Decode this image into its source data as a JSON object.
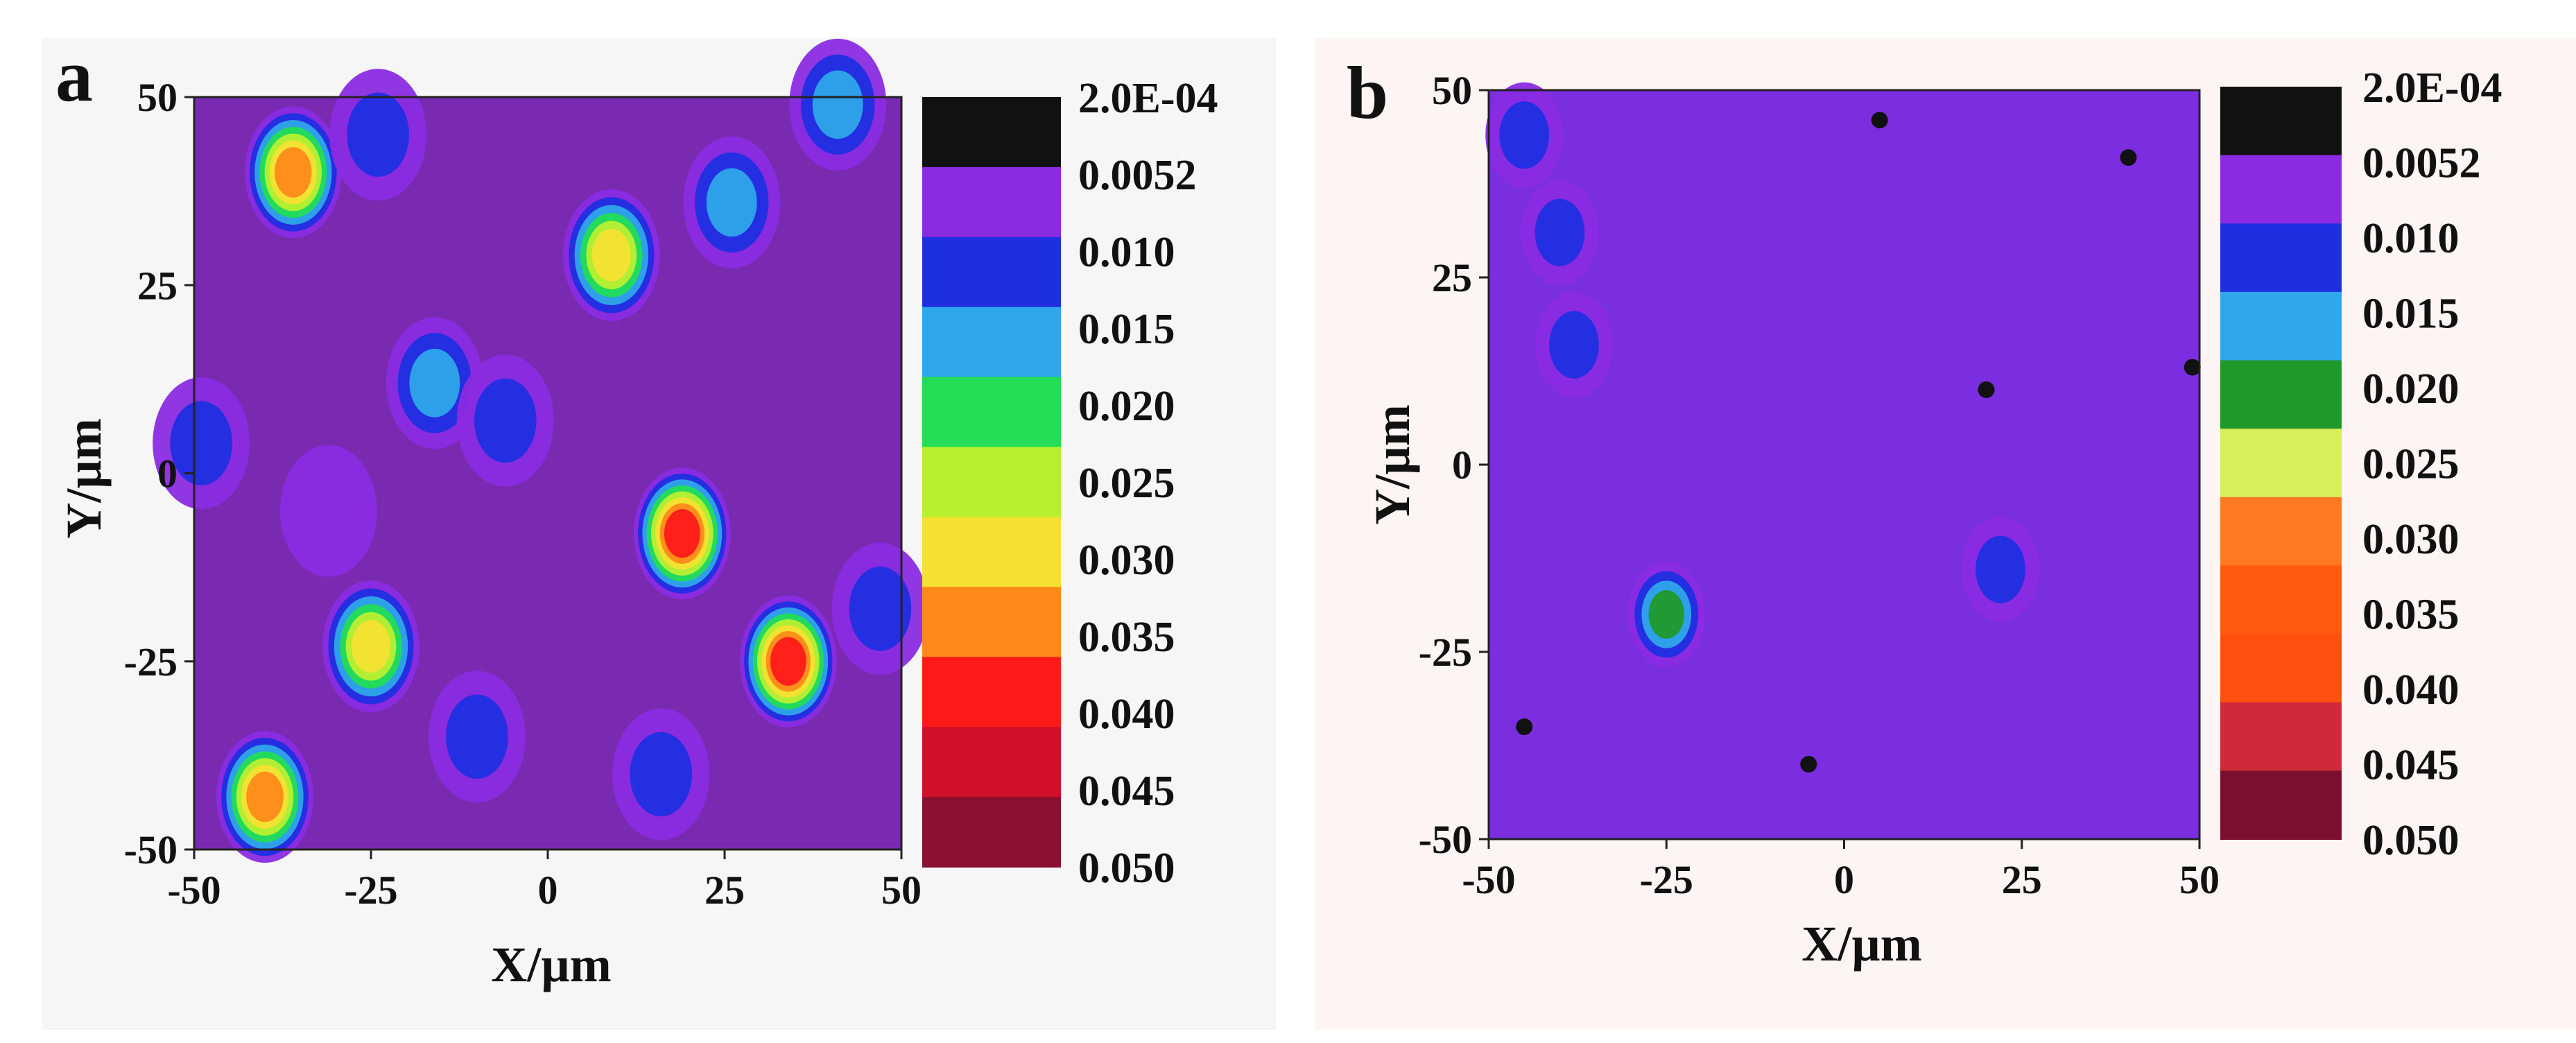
{
  "chart_data": [
    {
      "type": "heatmap",
      "panel_label": "a",
      "xlabel": "X/µm",
      "ylabel": "Y/µm",
      "xlim": [
        -50,
        50
      ],
      "ylim": [
        -50,
        50
      ],
      "xticks": [
        "-50",
        "-25",
        "0",
        "25",
        "50"
      ],
      "yticks": [
        "50",
        "25",
        "0",
        "-25",
        "-50"
      ],
      "colorbar": {
        "labels": [
          "2.0E-04",
          "0.0052",
          "0.010",
          "0.015",
          "0.020",
          "0.025",
          "0.030",
          "0.035",
          "0.040",
          "0.045",
          "0.050"
        ],
        "colors": [
          "#111111",
          "#8a2be2",
          "#1f2fe0",
          "#2fa7ea",
          "#22dd55",
          "#b8f030",
          "#f5e033",
          "#ff8a1a",
          "#ff1a1a",
          "#d0102a",
          "#8a1030"
        ]
      },
      "background_color": "#7a2ab0",
      "hotspots": [
        {
          "x": -36,
          "y": 40,
          "level": 0.035
        },
        {
          "x": -24,
          "y": 45,
          "level": 0.012
        },
        {
          "x": 9,
          "y": 29,
          "level": 0.03
        },
        {
          "x": 26,
          "y": 36,
          "level": 0.018
        },
        {
          "x": 41,
          "y": 49,
          "level": 0.017
        },
        {
          "x": -16,
          "y": 12,
          "level": 0.015
        },
        {
          "x": -6,
          "y": 7,
          "level": 0.012
        },
        {
          "x": -49,
          "y": 4,
          "level": 0.01
        },
        {
          "x": 19,
          "y": -8,
          "level": 0.04
        },
        {
          "x": 34,
          "y": -25,
          "level": 0.04
        },
        {
          "x": -25,
          "y": -23,
          "level": 0.03
        },
        {
          "x": -10,
          "y": -35,
          "level": 0.012
        },
        {
          "x": -40,
          "y": -43,
          "level": 0.035
        },
        {
          "x": 47,
          "y": -18,
          "level": 0.012
        },
        {
          "x": 16,
          "y": -40,
          "level": 0.01
        },
        {
          "x": -31,
          "y": -5,
          "level": 0.009
        }
      ]
    },
    {
      "type": "heatmap",
      "panel_label": "b",
      "xlabel": "X/µm",
      "ylabel": "Y/µm",
      "xlim": [
        -50,
        50
      ],
      "ylim": [
        -50,
        50
      ],
      "xticks": [
        "-50",
        "-25",
        "0",
        "25",
        "50"
      ],
      "yticks": [
        "50",
        "25",
        "0",
        "-25",
        "-50"
      ],
      "colorbar": {
        "labels": [
          "2.0E-04",
          "0.0052",
          "0.010",
          "0.015",
          "0.020",
          "0.025",
          "0.030",
          "0.035",
          "0.040",
          "0.045",
          "0.050"
        ],
        "colors": [
          "#111111",
          "#8a2be2",
          "#1f2fe0",
          "#2fa7ea",
          "#1f9a2a",
          "#d6ef5a",
          "#ff7a22",
          "#ff5a10",
          "#ff5010",
          "#d02a3a",
          "#7a0f30"
        ]
      },
      "background_color": "#7a2ee0",
      "hotspots": [
        {
          "x": -45,
          "y": 44,
          "level": 0.012
        },
        {
          "x": -40,
          "y": 31,
          "level": 0.012
        },
        {
          "x": -38,
          "y": 16,
          "level": 0.012
        },
        {
          "x": 22,
          "y": -14,
          "level": 0.01
        },
        {
          "x": -25,
          "y": -20,
          "level": 0.02
        }
      ],
      "dark_spots": [
        {
          "x": 40,
          "y": 41
        },
        {
          "x": 49,
          "y": 13
        },
        {
          "x": 20,
          "y": 10
        },
        {
          "x": -45,
          "y": -35
        },
        {
          "x": -5,
          "y": -40
        },
        {
          "x": 5,
          "y": 46
        }
      ]
    }
  ]
}
